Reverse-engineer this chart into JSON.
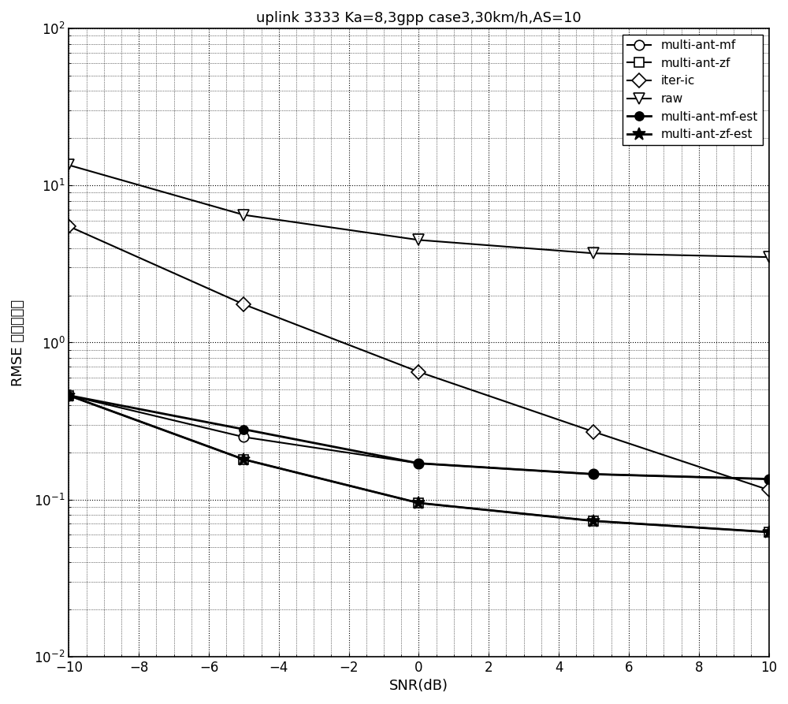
{
  "title": "uplink 3333 Ka=8,3gpp case3,30km/h,AS=10",
  "xlabel": "SNR(dB)",
  "ylabel": "RMSE 门限处理前",
  "xlim": [
    -10,
    10
  ],
  "ylim": [
    0.01,
    100
  ],
  "xticks": [
    -10,
    -8,
    -6,
    -4,
    -2,
    0,
    2,
    4,
    6,
    8,
    10
  ],
  "snr": [
    -10,
    -5,
    0,
    5,
    10
  ],
  "series_configs": [
    {
      "label": "multi-ant-mf",
      "marker": "o",
      "markersize": 9,
      "linewidth": 1.5,
      "filled": false,
      "values": [
        0.46,
        0.25,
        0.17,
        0.145,
        0.135
      ]
    },
    {
      "label": "multi-ant-zf",
      "marker": "s",
      "markersize": 8,
      "linewidth": 1.5,
      "filled": false,
      "values": [
        0.46,
        0.18,
        0.095,
        0.073,
        0.062
      ]
    },
    {
      "label": "iter-ic",
      "marker": "D",
      "markersize": 9,
      "linewidth": 1.5,
      "filled": false,
      "values": [
        5.5,
        1.75,
        0.65,
        0.27,
        0.115
      ]
    },
    {
      "label": "raw",
      "marker": "v",
      "markersize": 10,
      "linewidth": 1.5,
      "filled": false,
      "values": [
        13.5,
        6.5,
        4.5,
        3.7,
        3.5
      ]
    },
    {
      "label": "multi-ant-mf-est",
      "marker": "o",
      "markersize": 8,
      "linewidth": 2.0,
      "filled": true,
      "values": [
        0.46,
        0.28,
        0.17,
        0.145,
        0.135
      ]
    },
    {
      "label": "multi-ant-zf-est",
      "marker": "*",
      "markersize": 12,
      "linewidth": 2.0,
      "filled": true,
      "values": [
        0.46,
        0.18,
        0.095,
        0.073,
        0.062
      ]
    }
  ],
  "legend_loc": "upper right",
  "background_color": "#ffffff",
  "line_color": "#000000",
  "title_fontsize": 13,
  "label_fontsize": 13,
  "tick_fontsize": 12,
  "legend_fontsize": 11
}
